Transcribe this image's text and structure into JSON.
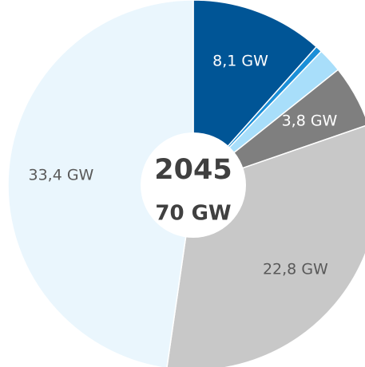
{
  "chart_data": {
    "type": "pie",
    "title": "2045",
    "subtitle": "70 GW",
    "values": [
      8.1,
      0.4,
      1.5,
      3.8,
      22.8,
      33.4
    ],
    "value_labels": [
      "8,1 GW",
      null,
      null,
      "3,8 GW",
      "22,8 GW",
      "33,4 GW"
    ],
    "colors": [
      "#005596",
      "#1b8fd8",
      "#a8defa",
      "#7f7f7f",
      "#c8c8c8",
      "#eaf6fd"
    ]
  }
}
